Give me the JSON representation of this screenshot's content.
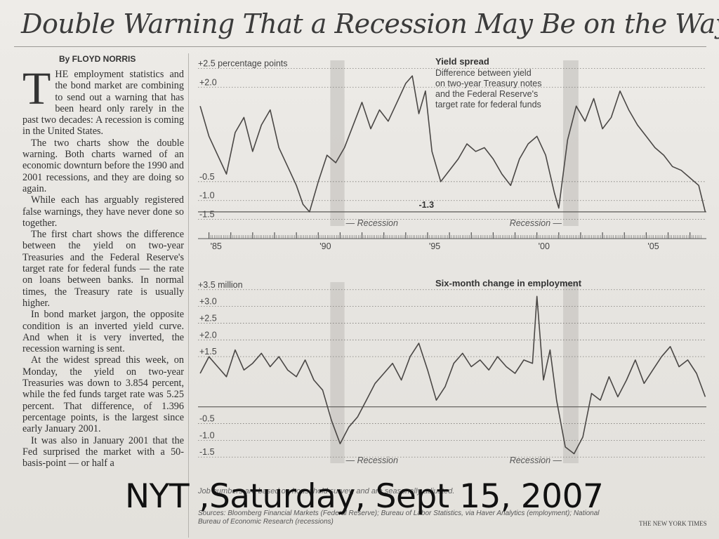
{
  "headline": "Double Warning That a Recession May Be on the Way",
  "byline": "By FLOYD NORRIS",
  "article": {
    "dropcap": "T",
    "paragraphs": [
      "HE employment statistics and the bond market are combining to send out a warning that has been heard only rarely in the past two decades: A recession is coming in the United States.",
      "The two charts show the double warning. Both charts warned of an economic downturn before the 1990 and 2001 recessions, and they are doing so again.",
      "While each has arguably registered false warnings, they have never done so together.",
      "The first chart shows the difference between the yield on two-year Treasuries and the Federal Reserve's target rate for federal funds — the rate on loans between banks. In normal times, the Treasury rate is usually higher.",
      "In bond market jargon, the opposite condition is an inverted yield curve. And when it is very inverted, the recession warning is sent.",
      "At the widest spread this week, on Monday, the yield on two-year Treasuries was down to 3.854 percent, while the fed funds target rate was 5.25 percent. That difference, of 1.396 percentage points, is the largest since early January 2001.",
      "It was also in January 2001 that the Fed surprised the market with a 50-basis-point — or half a"
    ]
  },
  "chart_data": [
    {
      "type": "line",
      "title": "Yield spread",
      "subtitle": "Difference between yield on two-year Treasury notes and the Federal Reserve's target rate for federal funds",
      "ylabel": "+2.5 percentage points",
      "y_ticks": [
        "+2.0",
        "-0.5",
        "-1.0",
        "-1.5"
      ],
      "x_ticks": [
        "'85",
        "'90",
        "'95",
        "'00",
        "'05"
      ],
      "xlim": [
        1984.5,
        2007.75
      ],
      "ylim": [
        -1.6,
        2.6
      ],
      "annotation": "-1.3",
      "recession_labels": [
        "— Recession",
        "Recession —"
      ],
      "recessions": [
        [
          1990.55,
          1991.2
        ],
        [
          2001.2,
          2001.9
        ]
      ],
      "x": [
        1984.6,
        1985.0,
        1985.4,
        1985.8,
        1986.2,
        1986.6,
        1987.0,
        1987.4,
        1987.8,
        1988.2,
        1988.6,
        1989.0,
        1989.3,
        1989.6,
        1990.0,
        1990.4,
        1990.8,
        1991.2,
        1991.6,
        1992.0,
        1992.4,
        1992.8,
        1993.2,
        1993.6,
        1994.0,
        1994.3,
        1994.6,
        1994.9,
        1995.2,
        1995.6,
        1996.0,
        1996.4,
        1996.8,
        1997.2,
        1997.6,
        1998.0,
        1998.4,
        1998.8,
        1999.2,
        1999.6,
        2000.0,
        2000.4,
        2000.8,
        2001.0,
        2001.4,
        2001.8,
        2002.2,
        2002.6,
        2003.0,
        2003.4,
        2003.8,
        2004.2,
        2004.6,
        2005.0,
        2005.4,
        2005.8,
        2006.2,
        2006.6,
        2007.0,
        2007.4,
        2007.7
      ],
      "y": [
        1.5,
        0.7,
        0.2,
        -0.3,
        0.8,
        1.2,
        0.3,
        1.0,
        1.4,
        0.4,
        -0.1,
        -0.6,
        -1.1,
        -1.3,
        -0.5,
        0.2,
        0.0,
        0.4,
        1.0,
        1.6,
        0.9,
        1.4,
        1.1,
        1.6,
        2.1,
        2.3,
        1.3,
        1.9,
        0.3,
        -0.5,
        -0.2,
        0.1,
        0.5,
        0.3,
        0.4,
        0.1,
        -0.3,
        -0.6,
        0.1,
        0.5,
        0.7,
        0.2,
        -0.8,
        -1.2,
        0.6,
        1.5,
        1.1,
        1.7,
        0.9,
        1.2,
        1.9,
        1.4,
        1.0,
        0.7,
        0.4,
        0.2,
        -0.1,
        -0.2,
        -0.4,
        -0.6,
        -1.3
      ]
    },
    {
      "type": "line",
      "title": "Six-month change in employment",
      "ylabel": "+3.5 million",
      "y_ticks": [
        "+3.0",
        "+2.5",
        "+2.0",
        "+1.5",
        "-0.5",
        "-1.0",
        "-1.5"
      ],
      "xlim": [
        1984.5,
        2007.75
      ],
      "ylim": [
        -1.6,
        3.6
      ],
      "recession_labels": [
        "— Recession",
        "Recession —"
      ],
      "recessions": [
        [
          1990.55,
          1991.2
        ],
        [
          2001.2,
          2001.9
        ]
      ],
      "x": [
        1984.6,
        1985.0,
        1985.4,
        1985.8,
        1986.2,
        1986.6,
        1987.0,
        1987.4,
        1987.8,
        1988.2,
        1988.6,
        1989.0,
        1989.4,
        1989.8,
        1990.2,
        1990.6,
        1991.0,
        1991.4,
        1991.8,
        1992.2,
        1992.6,
        1993.0,
        1993.4,
        1993.8,
        1994.2,
        1994.6,
        1995.0,
        1995.4,
        1995.8,
        1996.2,
        1996.6,
        1997.0,
        1997.4,
        1997.8,
        1998.2,
        1998.6,
        1999.0,
        1999.4,
        1999.8,
        2000.0,
        2000.3,
        2000.6,
        2000.9,
        2001.3,
        2001.7,
        2002.1,
        2002.5,
        2002.9,
        2003.3,
        2003.7,
        2004.1,
        2004.5,
        2004.9,
        2005.3,
        2005.7,
        2006.1,
        2006.5,
        2006.9,
        2007.3,
        2007.7
      ],
      "y": [
        1.0,
        1.5,
        1.2,
        0.9,
        1.7,
        1.1,
        1.3,
        1.6,
        1.2,
        1.5,
        1.1,
        0.9,
        1.4,
        0.8,
        0.5,
        -0.4,
        -1.1,
        -0.6,
        -0.3,
        0.2,
        0.7,
        1.0,
        1.3,
        0.8,
        1.5,
        1.9,
        1.1,
        0.2,
        0.6,
        1.3,
        1.6,
        1.2,
        1.4,
        1.1,
        1.5,
        1.2,
        1.0,
        1.4,
        1.3,
        3.3,
        0.8,
        1.7,
        0.2,
        -1.2,
        -1.4,
        -0.9,
        0.4,
        0.2,
        0.9,
        0.3,
        0.8,
        1.4,
        0.7,
        1.1,
        1.5,
        1.8,
        1.2,
        1.4,
        1.0,
        0.3
      ]
    }
  ],
  "footnote": "Job numbers are based on household survey, and are seasonally adjusted.",
  "sources": "Sources: Bloomberg Financial Markets (Federal Reserve); Bureau of Labor Statistics, via Haver Analytics (employment); National Bureau of Economic Research (recessions)",
  "credit": "THE NEW YORK TIMES",
  "overlay_caption": "NYT ,Saturday, Sept 15, 2007"
}
